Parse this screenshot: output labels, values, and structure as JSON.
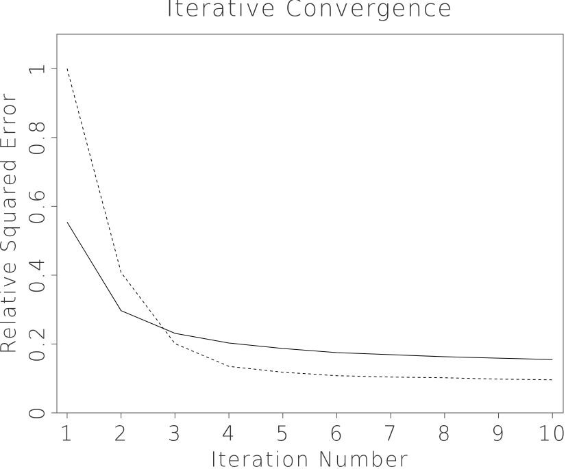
{
  "chart_data": {
    "type": "line",
    "title": "Iterative Convergence",
    "xlabel": "Iteration Number",
    "ylabel": "Relative Squared Error",
    "x": [
      1,
      2,
      3,
      4,
      5,
      6,
      7,
      8,
      9,
      10
    ],
    "series": [
      {
        "color": "#000000",
        "dashed": false,
        "values": [
          0.554,
          0.297,
          0.231,
          0.203,
          0.187,
          0.175,
          0.169,
          0.163,
          0.159,
          0.155
        ]
      },
      {
        "color": "#000000",
        "dashed": true,
        "values": [
          1.0,
          0.408,
          0.201,
          0.135,
          0.118,
          0.108,
          0.104,
          0.102,
          0.098,
          0.096
        ]
      }
    ],
    "xlim": [
      0.81,
      10.2
    ],
    "xticks": [
      1,
      2,
      3,
      4,
      5,
      6,
      7,
      8,
      9,
      10
    ],
    "ylim": [
      0,
      1.1
    ],
    "yticks": [
      0,
      0.2,
      0.4,
      0.6,
      0.8,
      1
    ],
    "grid": false
  }
}
